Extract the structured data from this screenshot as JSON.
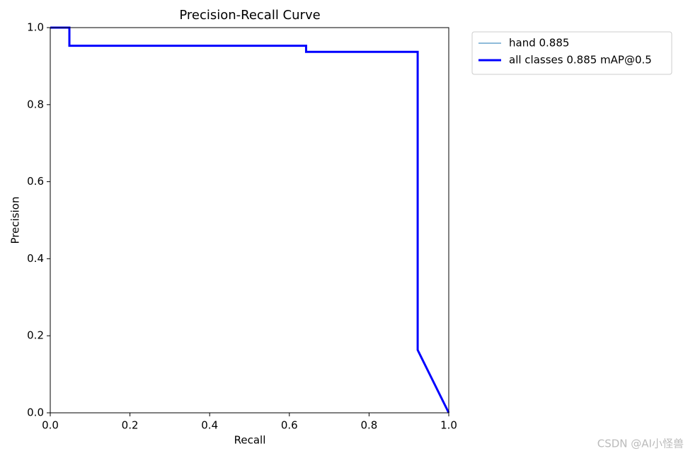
{
  "chart_data": {
    "type": "line",
    "title": "Precision-Recall Curve",
    "x_label": "Recall",
    "y_label": "Precision",
    "x": [
      0,
      0.048,
      0.048,
      0.642,
      0.642,
      0.922,
      0.922,
      1
    ],
    "series": [
      {
        "name": "hand 0.885",
        "color": "#1f77b4",
        "linewidth": 1,
        "values": [
          1,
          1,
          0.953,
          0.953,
          0.937,
          0.937,
          0.163,
          0
        ]
      },
      {
        "name": "all classes 0.885 mAP@0.5",
        "color": "#0000ff",
        "linewidth": 3,
        "values": [
          1,
          1,
          0.953,
          0.953,
          0.937,
          0.937,
          0.163,
          0
        ]
      }
    ],
    "xlim": [
      0,
      1
    ],
    "ylim": [
      0,
      1
    ],
    "xticks": [
      {
        "value": 0,
        "label": "0.0"
      },
      0.2,
      0.4,
      0.6,
      0.8,
      {
        "value": 1,
        "label": "1.0"
      }
    ],
    "yticks": [
      {
        "value": 0,
        "label": "0.0"
      },
      0.2,
      0.4,
      0.6,
      0.8,
      {
        "value": 1,
        "label": "1.0"
      }
    ],
    "grid": false,
    "legend": "outside-right"
  },
  "watermark": "CSDN @AI小怪兽"
}
